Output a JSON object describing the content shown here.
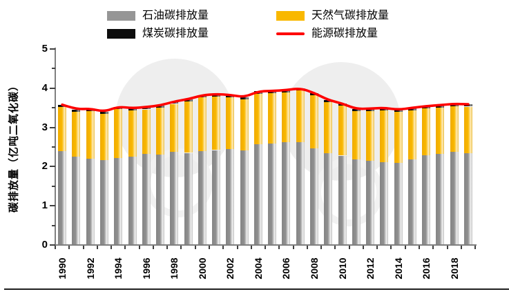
{
  "legend": {
    "items": [
      {
        "label": "石油碳排放量",
        "type": "rect",
        "color": "#969696"
      },
      {
        "label": "煤炭碳排放量",
        "type": "rect",
        "color": "#0d0d0d"
      },
      {
        "label": "天然气碳排放量",
        "type": "rect",
        "color": "#f9b800"
      },
      {
        "label": "能源碳排放量",
        "type": "line",
        "color": "#fe0000"
      }
    ]
  },
  "axes": {
    "y_title": "碳排放量（亿吨二氧化碳）",
    "y_ticks": [
      "0",
      "1",
      "2",
      "3",
      "4",
      "5"
    ],
    "y_max": 5,
    "x_labeled_years": [
      "1990",
      "1992",
      "1994",
      "1996",
      "1998",
      "2000",
      "2002",
      "2004",
      "2006",
      "2008",
      "2010",
      "2012",
      "2014",
      "2016",
      "2018"
    ]
  },
  "chart_data": {
    "type": "bar",
    "subtype": "stacked-bars-with-line",
    "x": [
      1990,
      1991,
      1992,
      1993,
      1994,
      1995,
      1996,
      1997,
      1998,
      1999,
      2000,
      2001,
      2002,
      2003,
      2004,
      2005,
      2006,
      2007,
      2008,
      2009,
      2010,
      2011,
      2012,
      2013,
      2014,
      2015,
      2016,
      2017,
      2018,
      2019
    ],
    "series": [
      {
        "name": "石油碳排放量",
        "type": "bar",
        "stacked": true,
        "color": "#969696",
        "values": [
          2.4,
          2.25,
          2.2,
          2.16,
          2.22,
          2.26,
          2.32,
          2.3,
          2.38,
          2.35,
          2.4,
          2.42,
          2.44,
          2.41,
          2.57,
          2.59,
          2.62,
          2.62,
          2.46,
          2.34,
          2.28,
          2.18,
          2.15,
          2.12,
          2.1,
          2.19,
          2.29,
          2.33,
          2.37,
          2.35
        ]
      },
      {
        "name": "天然气碳排放量",
        "type": "bar",
        "stacked": true,
        "color": "#f9b800",
        "values": [
          1.12,
          1.15,
          1.22,
          1.18,
          1.25,
          1.17,
          1.14,
          1.2,
          1.22,
          1.31,
          1.36,
          1.37,
          1.33,
          1.3,
          1.29,
          1.28,
          1.27,
          1.32,
          1.36,
          1.3,
          1.27,
          1.23,
          1.27,
          1.32,
          1.29,
          1.25,
          1.19,
          1.18,
          1.17,
          1.18
        ]
      },
      {
        "name": "煤炭碳排放量",
        "type": "bar",
        "stacked": true,
        "color": "#0d0d0d",
        "values": [
          0.06,
          0.06,
          0.06,
          0.06,
          0.06,
          0.06,
          0.06,
          0.06,
          0.06,
          0.06,
          0.06,
          0.06,
          0.06,
          0.06,
          0.06,
          0.06,
          0.06,
          0.06,
          0.06,
          0.06,
          0.06,
          0.06,
          0.06,
          0.06,
          0.06,
          0.06,
          0.06,
          0.06,
          0.06,
          0.06
        ]
      },
      {
        "name": "能源碳排放量",
        "type": "line",
        "color": "#fe0000",
        "values": [
          3.58,
          3.46,
          3.48,
          3.4,
          3.53,
          3.49,
          3.52,
          3.56,
          3.66,
          3.72,
          3.82,
          3.85,
          3.83,
          3.77,
          3.92,
          3.93,
          3.95,
          4.0,
          3.88,
          3.7,
          3.61,
          3.47,
          3.48,
          3.5,
          3.45,
          3.5,
          3.54,
          3.57,
          3.6,
          3.59
        ]
      }
    ],
    "title": "",
    "xlabel": "",
    "ylabel": "碳排放量（亿吨二氧化碳）",
    "ylim": [
      0,
      5
    ],
    "y_major_step": 1,
    "y_minor_step": 0.5,
    "x_tick_label_step": 2,
    "grid": false,
    "legend_position": "top"
  }
}
